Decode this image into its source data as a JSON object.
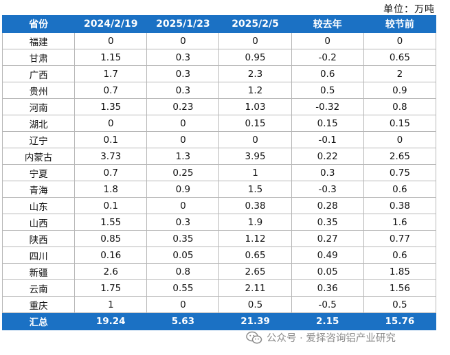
{
  "unit_label": "单位：万吨",
  "table": {
    "headers": [
      "省份",
      "2024/2/19",
      "2025/1/23",
      "2025/2/5",
      "较去年",
      "较节前"
    ],
    "rows": [
      [
        "福建",
        "0",
        "0",
        "0",
        "0",
        "0"
      ],
      [
        "甘肃",
        "1.15",
        "0.3",
        "0.95",
        "-0.2",
        "0.65"
      ],
      [
        "广西",
        "1.7",
        "0.3",
        "2.3",
        "0.6",
        "2"
      ],
      [
        "贵州",
        "0.7",
        "0.3",
        "1.2",
        "0.5",
        "0.9"
      ],
      [
        "河南",
        "1.35",
        "0.23",
        "1.03",
        "-0.32",
        "0.8"
      ],
      [
        "湖北",
        "0",
        "0",
        "0.15",
        "0.15",
        "0.15"
      ],
      [
        "辽宁",
        "0.1",
        "0",
        "0",
        "-0.1",
        "0"
      ],
      [
        "内蒙古",
        "3.73",
        "1.3",
        "3.95",
        "0.22",
        "2.65"
      ],
      [
        "宁夏",
        "0.7",
        "0.25",
        "1",
        "0.3",
        "0.75"
      ],
      [
        "青海",
        "1.8",
        "0.9",
        "1.5",
        "-0.3",
        "0.6"
      ],
      [
        "山东",
        "0.1",
        "0",
        "0.38",
        "0.28",
        "0.38"
      ],
      [
        "山西",
        "1.55",
        "0.3",
        "1.9",
        "0.35",
        "1.6"
      ],
      [
        "陕西",
        "0.85",
        "0.35",
        "1.12",
        "0.27",
        "0.77"
      ],
      [
        "四川",
        "0.16",
        "0.05",
        "0.65",
        "0.49",
        "0.6"
      ],
      [
        "新疆",
        "2.6",
        "0.8",
        "2.65",
        "0.05",
        "1.85"
      ],
      [
        "云南",
        "1.75",
        "0.55",
        "2.11",
        "0.36",
        "1.56"
      ],
      [
        "重庆",
        "1",
        "0",
        "0.5",
        "-0.5",
        "0.5"
      ]
    ],
    "total": [
      "汇总",
      "19.24",
      "5.63",
      "21.39",
      "2.15",
      "15.76"
    ]
  },
  "watermark": {
    "icon": "wechat-icon",
    "text": "公众号 · 爱择咨询铝产业研究"
  },
  "colors": {
    "header_bg": "#1b71c4",
    "header_text": "#ffffff",
    "border": "#b7b7b7"
  }
}
